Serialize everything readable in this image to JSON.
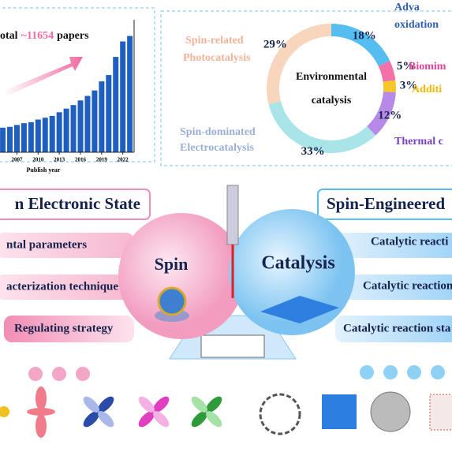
{
  "chart_data": [
    {
      "type": "bar",
      "title_parts": [
        "otal",
        "~11654",
        "papers"
      ],
      "xlabel": "Publish year",
      "x": [
        2005,
        2006,
        2007,
        2008,
        2009,
        2010,
        2011,
        2012,
        2013,
        2014,
        2015,
        2016,
        2017,
        2018,
        2019,
        2020,
        2021,
        2022,
        2023
      ],
      "values": [
        283,
        293,
        314,
        335,
        346,
        377,
        398,
        419,
        461,
        503,
        544,
        597,
        649,
        712,
        817,
        890,
        1099,
        1277,
        1340
      ],
      "xlim": [
        2004.6,
        2023.6
      ],
      "ylim": [
        0,
        1500
      ],
      "xticks": [
        2007,
        2010,
        2013,
        2016,
        2019,
        2022
      ],
      "color": "#1f5fbf"
    },
    {
      "type": "pie",
      "center": [
        "Environmental",
        "catalysis"
      ],
      "categories": [
        "Adva oxidation",
        "Biomim",
        "Additi",
        "Thermal c",
        "Spin-dominated Electrocatalysis",
        "Spin-related Photocatalysis"
      ],
      "values": [
        18,
        5,
        3,
        12,
        33,
        29
      ],
      "value_labels": [
        "18%",
        "5%",
        "3%",
        "12%",
        "33%",
        "29%"
      ],
      "colors": [
        "#55bdf0",
        "#f272a8",
        "#f5c82a",
        "#b68ae6",
        "#a9e5e8",
        "#f8d6bd"
      ]
    }
  ],
  "left_banner": "n Electronic State",
  "right_banner": "Spin-Engineered",
  "left_items": [
    "ntal parameters",
    "acterization technique",
    "Regulating strategy"
  ],
  "right_items": [
    "Catalytic reacti",
    "Catalytic reaction",
    "Catalytic reaction sta"
  ],
  "spin": "Spin",
  "catalysis": "Catalysis"
}
